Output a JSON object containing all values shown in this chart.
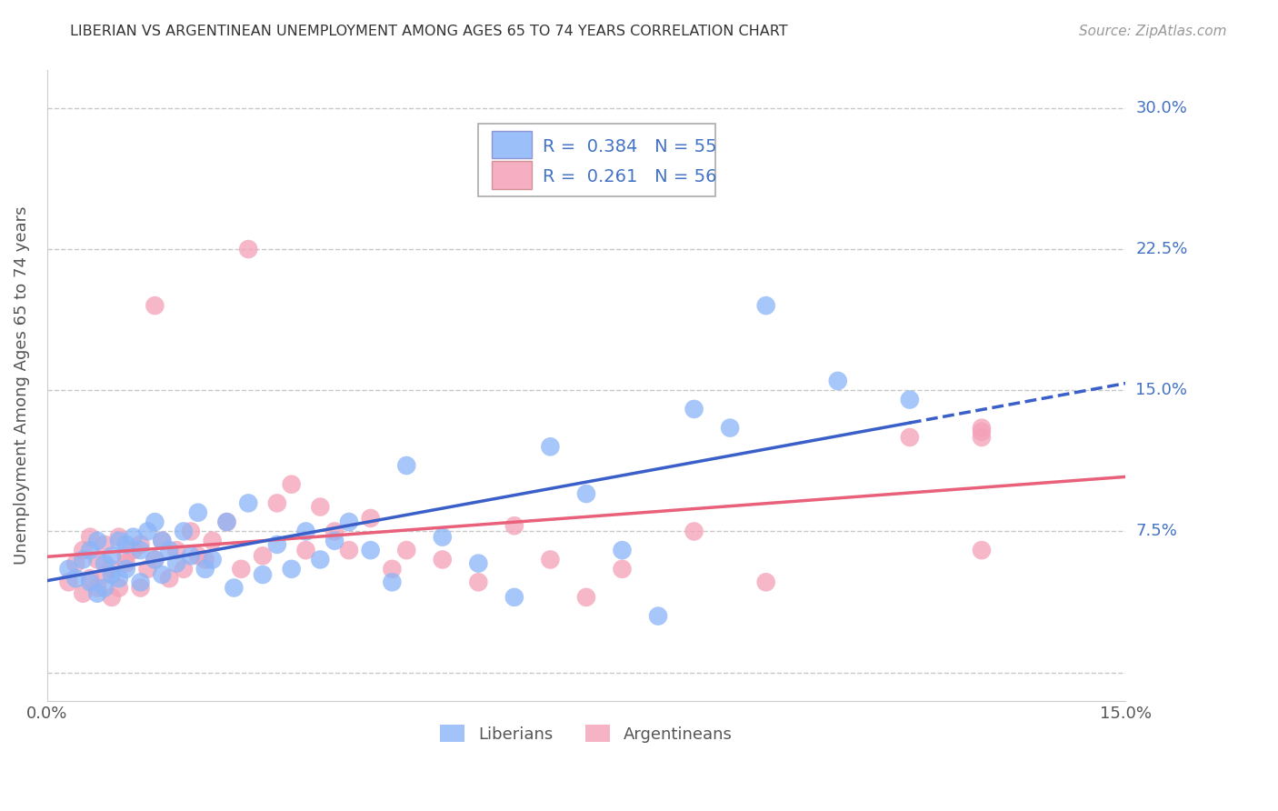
{
  "title": "LIBERIAN VS ARGENTINEAN UNEMPLOYMENT AMONG AGES 65 TO 74 YEARS CORRELATION CHART",
  "source": "Source: ZipAtlas.com",
  "ylabel": "Unemployment Among Ages 65 to 74 years",
  "xlim": [
    0.0,
    0.15
  ],
  "ylim": [
    -0.015,
    0.32
  ],
  "yticks": [
    0.0,
    0.075,
    0.15,
    0.225,
    0.3
  ],
  "ytick_labels": [
    "",
    "7.5%",
    "15.0%",
    "22.5%",
    "30.0%"
  ],
  "grid_color": "#c8c8c8",
  "background_color": "#ffffff",
  "liberian_color": "#8ab4f8",
  "argentinean_color": "#f4a0b8",
  "liberian_line_color": "#3a5fc8",
  "argentinean_line_color": "#e8607a",
  "liberian_R": "0.384",
  "liberian_N": "55",
  "argentinean_R": "0.261",
  "argentinean_N": "56",
  "liberian_scatter_x": [
    0.003,
    0.004,
    0.005,
    0.006,
    0.006,
    0.007,
    0.007,
    0.008,
    0.008,
    0.009,
    0.009,
    0.01,
    0.01,
    0.011,
    0.011,
    0.012,
    0.013,
    0.013,
    0.014,
    0.015,
    0.015,
    0.016,
    0.016,
    0.017,
    0.018,
    0.019,
    0.02,
    0.021,
    0.022,
    0.023,
    0.025,
    0.026,
    0.028,
    0.03,
    0.032,
    0.034,
    0.036,
    0.038,
    0.04,
    0.042,
    0.045,
    0.048,
    0.05,
    0.055,
    0.06,
    0.065,
    0.07,
    0.075,
    0.08,
    0.085,
    0.09,
    0.095,
    0.1,
    0.11,
    0.12
  ],
  "liberian_scatter_y": [
    0.055,
    0.05,
    0.06,
    0.048,
    0.065,
    0.042,
    0.07,
    0.058,
    0.045,
    0.052,
    0.062,
    0.05,
    0.07,
    0.068,
    0.055,
    0.072,
    0.048,
    0.065,
    0.075,
    0.06,
    0.08,
    0.07,
    0.052,
    0.065,
    0.058,
    0.075,
    0.062,
    0.085,
    0.055,
    0.06,
    0.08,
    0.045,
    0.09,
    0.052,
    0.068,
    0.055,
    0.075,
    0.06,
    0.07,
    0.08,
    0.065,
    0.048,
    0.11,
    0.072,
    0.058,
    0.04,
    0.12,
    0.095,
    0.065,
    0.03,
    0.14,
    0.13,
    0.195,
    0.155,
    0.145
  ],
  "argentinean_scatter_x": [
    0.003,
    0.004,
    0.005,
    0.005,
    0.006,
    0.006,
    0.007,
    0.007,
    0.008,
    0.008,
    0.009,
    0.009,
    0.01,
    0.01,
    0.011,
    0.011,
    0.012,
    0.013,
    0.013,
    0.014,
    0.015,
    0.015,
    0.016,
    0.017,
    0.018,
    0.019,
    0.02,
    0.021,
    0.022,
    0.023,
    0.025,
    0.027,
    0.028,
    0.03,
    0.032,
    0.034,
    0.036,
    0.038,
    0.04,
    0.042,
    0.045,
    0.048,
    0.05,
    0.055,
    0.06,
    0.065,
    0.07,
    0.075,
    0.08,
    0.09,
    0.1,
    0.12,
    0.13,
    0.13,
    0.13,
    0.13
  ],
  "argentinean_scatter_y": [
    0.048,
    0.058,
    0.042,
    0.065,
    0.05,
    0.072,
    0.045,
    0.06,
    0.052,
    0.068,
    0.04,
    0.055,
    0.045,
    0.072,
    0.062,
    0.058,
    0.065,
    0.045,
    0.068,
    0.055,
    0.06,
    0.195,
    0.07,
    0.05,
    0.065,
    0.055,
    0.075,
    0.062,
    0.06,
    0.07,
    0.08,
    0.055,
    0.225,
    0.062,
    0.09,
    0.1,
    0.065,
    0.088,
    0.075,
    0.065,
    0.082,
    0.055,
    0.065,
    0.06,
    0.048,
    0.078,
    0.06,
    0.04,
    0.055,
    0.075,
    0.048,
    0.125,
    0.065,
    0.125,
    0.128,
    0.13
  ]
}
